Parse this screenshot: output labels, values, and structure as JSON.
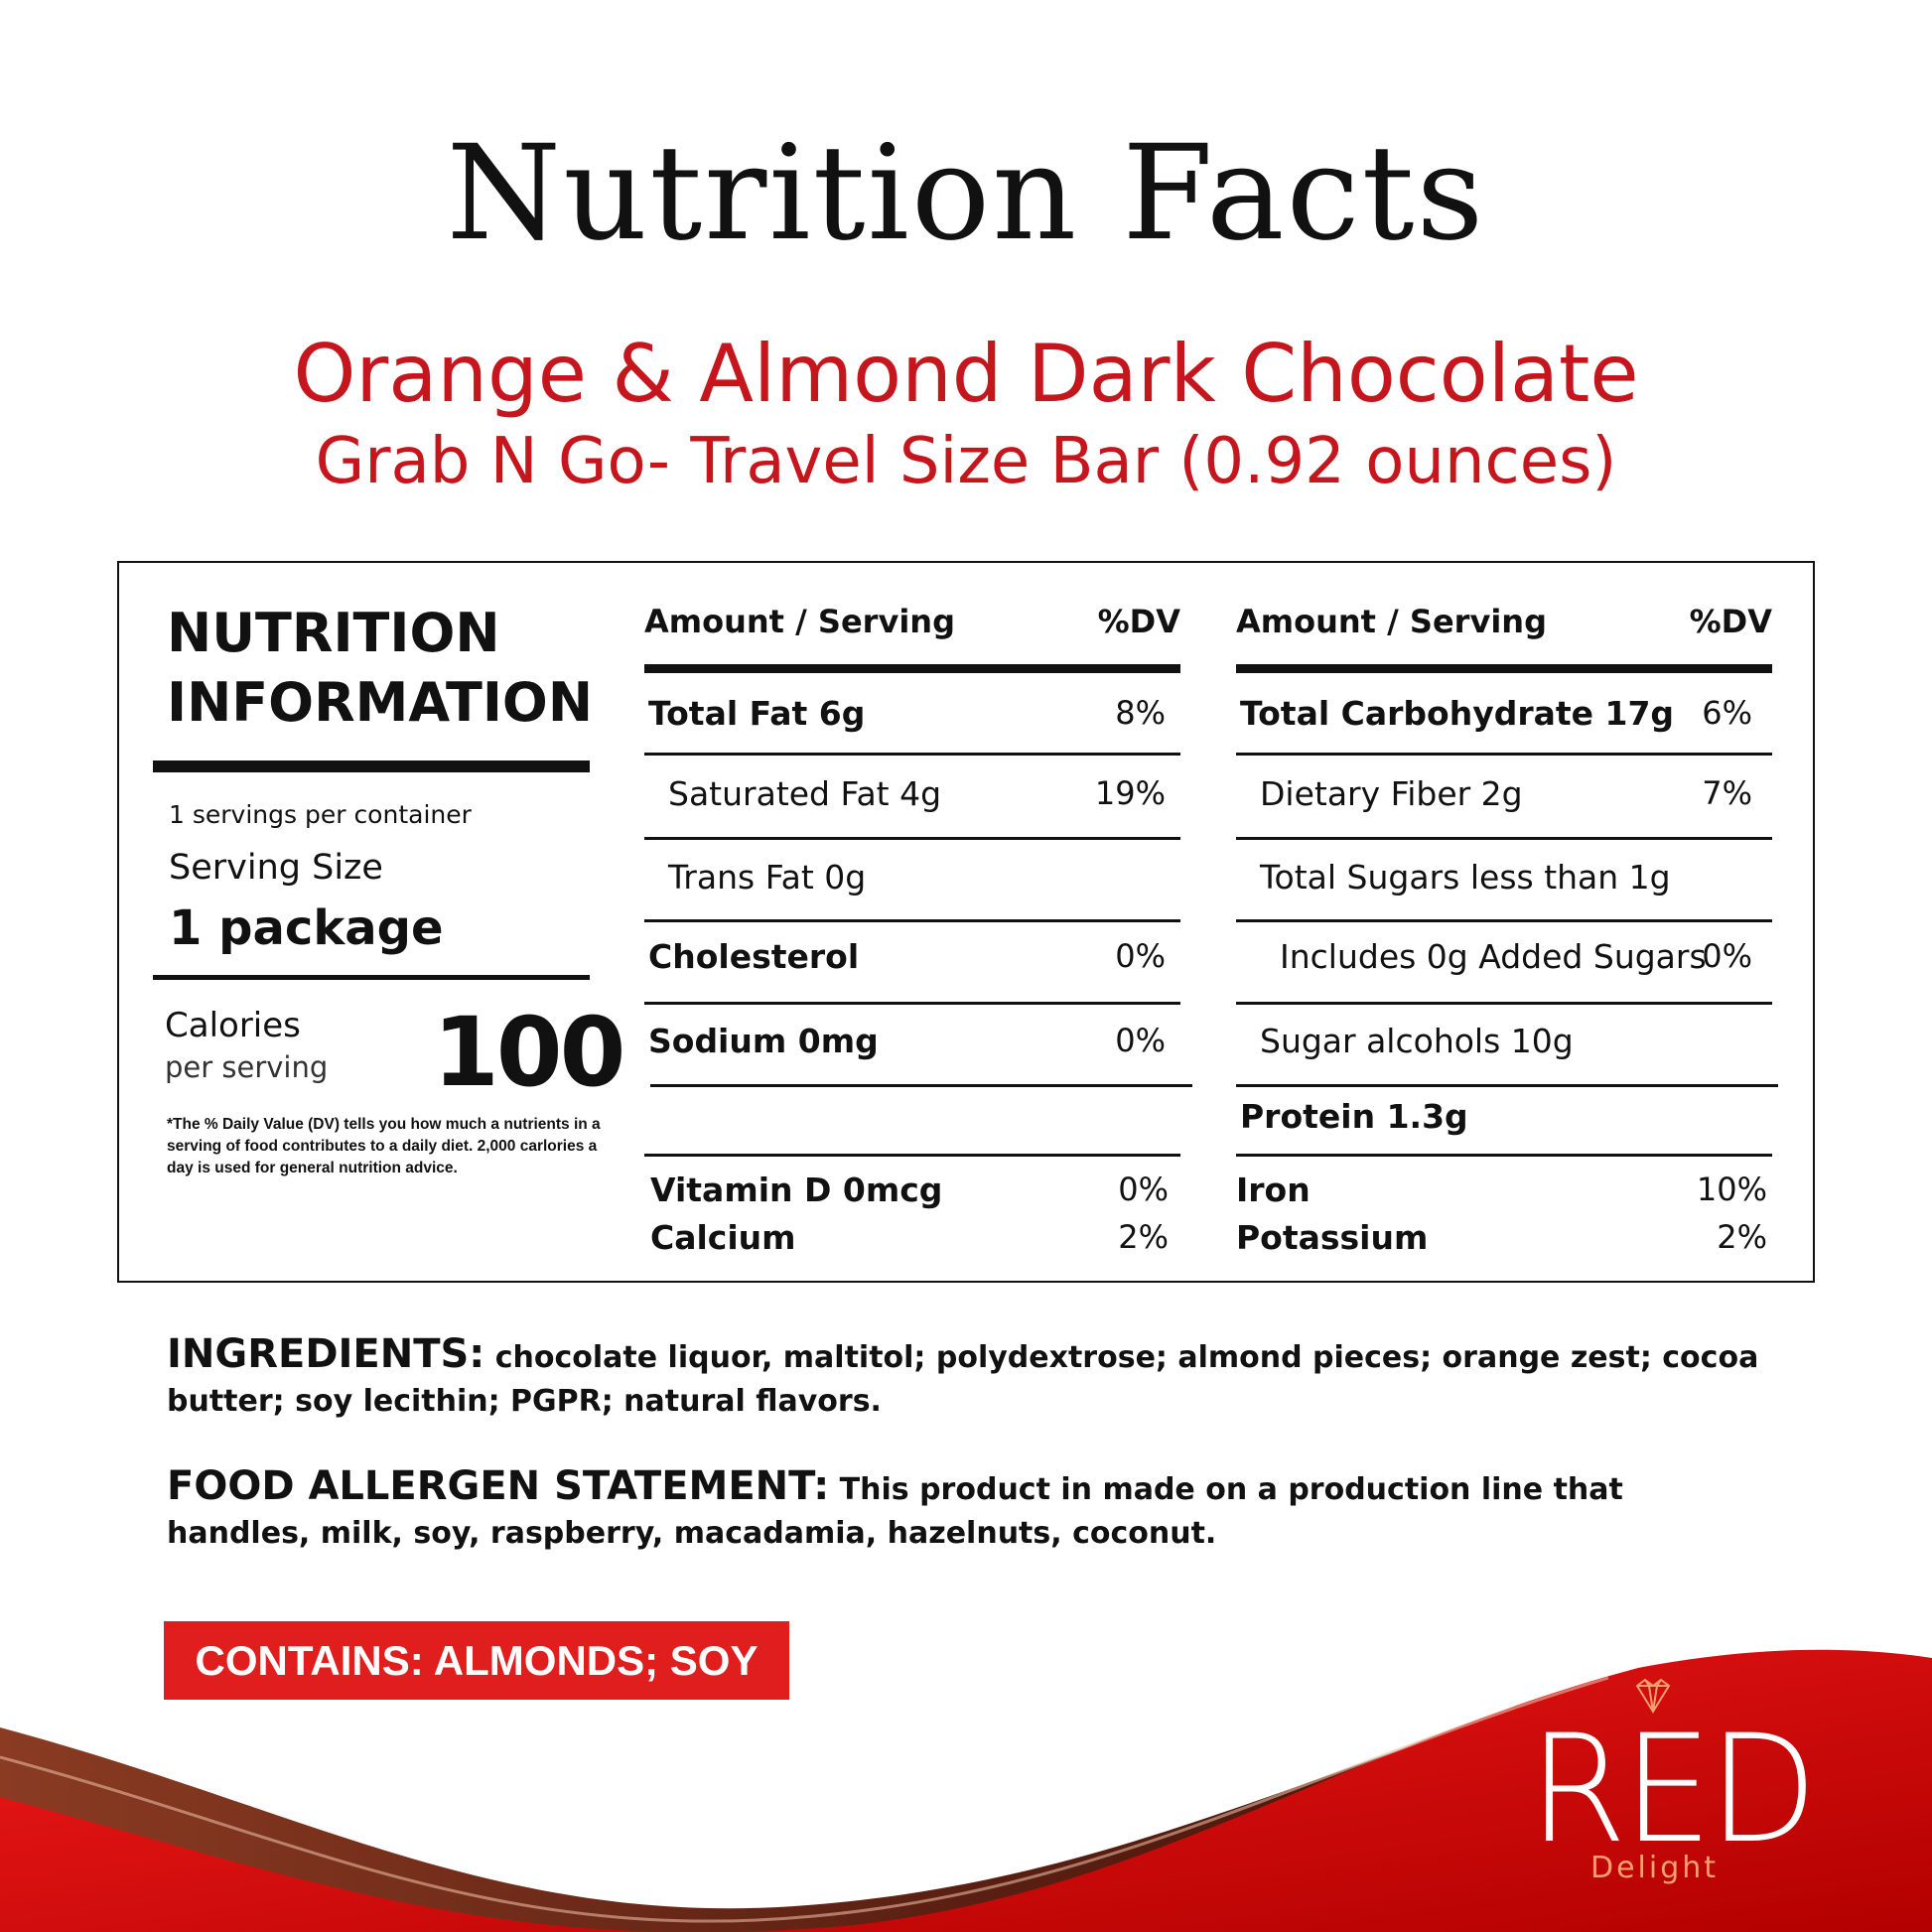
{
  "title": "Nutrition Facts",
  "product": {
    "name": "Orange & Almond Dark Chocolate",
    "size": "Grab N Go- Travel Size Bar (0.92 ounces)"
  },
  "panel": {
    "heading1": "NUTRITION",
    "heading2": "INFORMATION",
    "servings": "1 servings per container",
    "serving_size_label": "Serving Size",
    "serving_size": "1 package",
    "calories_label": "Calories",
    "calories_sub": "per serving",
    "calories": "100",
    "footnote": "*The % Daily Value (DV) tells you how much a nutrients in a serving of food contributes to a daily diet. 2,000 carlories a day is used for general nutrition advice.",
    "col_header": "Amount / Serving",
    "dv_header": "%DV",
    "left_rows": [
      {
        "label": "Total Fat 6g",
        "dv": "8%",
        "bold": true,
        "indent": 0
      },
      {
        "label": "Saturated Fat 4g",
        "dv": "19%",
        "bold": false,
        "indent": 1
      },
      {
        "label": "Trans Fat 0g",
        "dv": "",
        "bold": false,
        "indent": 1
      },
      {
        "label": "Cholesterol",
        "dv": "0%",
        "bold": true,
        "indent": 0
      },
      {
        "label": "Sodium 0mg",
        "dv": "0%",
        "bold": true,
        "indent": 0
      }
    ],
    "right_rows": [
      {
        "label": "Total Carbohydrate 17g",
        "dv": "6%",
        "bold": true,
        "indent": 0
      },
      {
        "label": "Dietary Fiber 2g",
        "dv": "7%",
        "bold": false,
        "indent": 1
      },
      {
        "label": "Total Sugars less than 1g",
        "dv": "",
        "bold": false,
        "indent": 1
      },
      {
        "label": "Includes 0g Added Sugars",
        "dv": "0%",
        "bold": false,
        "indent": 2
      },
      {
        "label": "Sugar alcohols 10g",
        "dv": "",
        "bold": false,
        "indent": 1
      },
      {
        "label": "Protein 1.3g",
        "dv": "",
        "bold": true,
        "indent": 0
      }
    ],
    "left_minerals": [
      {
        "label": "Vitamin D 0mcg",
        "dv": "0%"
      },
      {
        "label": "Calcium",
        "dv": "2%"
      }
    ],
    "right_minerals": [
      {
        "label": "Iron",
        "dv": "10%"
      },
      {
        "label": "Potassium",
        "dv": "2%"
      }
    ]
  },
  "ingredients": {
    "label": "INGREDIENTS:",
    "text": " chocolate liquor, maltitol; polydextrose; almond pieces; orange zest; cocoa butter; soy lecithin; PGPR; natural flavors."
  },
  "allergen": {
    "label": "FOOD ALLERGEN STATEMENT:",
    "text": " This product in made on a production line that handles, milk, soy, raspberry, macadamia, hazelnuts, coconut."
  },
  "contains": "CONTAINS: ALMONDS; SOY",
  "brand": {
    "name": "RED",
    "tagline": "Delight",
    "icon": "diamond-heart-icon"
  },
  "colors": {
    "accent": "#c4161c",
    "wave_red": "#e30613",
    "chocolate": "#6b2a1a"
  }
}
